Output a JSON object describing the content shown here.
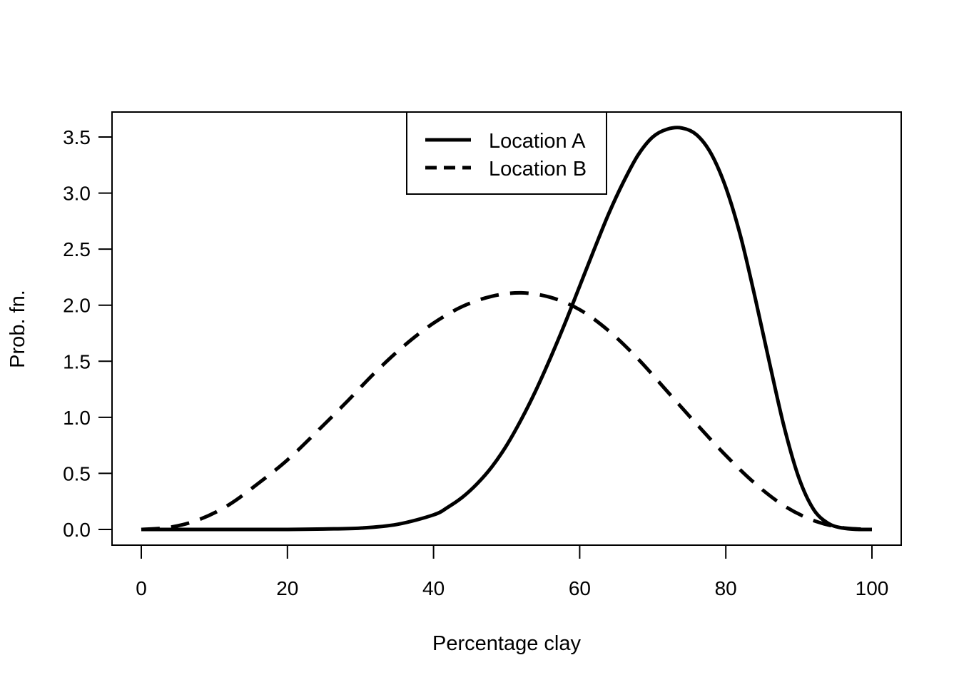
{
  "chart_data": {
    "type": "line",
    "title": "",
    "xlabel": "Percentage clay",
    "ylabel": "Prob. fn.",
    "xlim": [
      0,
      100
    ],
    "ylim": [
      0,
      3.5
    ],
    "xticks": [
      0,
      20,
      40,
      60,
      80,
      100
    ],
    "yticks": [
      0.0,
      0.5,
      1.0,
      1.5,
      2.0,
      2.5,
      3.0,
      3.5
    ],
    "xtick_labels": [
      "0",
      "20",
      "40",
      "60",
      "80",
      "100"
    ],
    "ytick_labels": [
      "0.0",
      "0.5",
      "1.0",
      "1.5",
      "2.0",
      "2.5",
      "3.0",
      "3.5"
    ],
    "grid": false,
    "legend_position": "top-center",
    "series": [
      {
        "name": "Location A",
        "line_style": "solid",
        "color": "#000000",
        "x": [
          0,
          5,
          10,
          15,
          20,
          25,
          30,
          35,
          40,
          42,
          44,
          46,
          48,
          50,
          52,
          54,
          56,
          58,
          60,
          62,
          64,
          66,
          68,
          70,
          72,
          74,
          76,
          78,
          80,
          82,
          84,
          86,
          88,
          90,
          92,
          94,
          96,
          98,
          100
        ],
        "y": [
          0,
          0,
          0,
          0,
          0,
          0.004,
          0.012,
          0.045,
          0.13,
          0.2,
          0.29,
          0.41,
          0.56,
          0.75,
          0.98,
          1.24,
          1.53,
          1.84,
          2.17,
          2.5,
          2.82,
          3.1,
          3.34,
          3.5,
          3.57,
          3.58,
          3.52,
          3.35,
          3.05,
          2.62,
          2.07,
          1.48,
          0.91,
          0.46,
          0.18,
          0.055,
          0.012,
          0.001,
          0
        ]
      },
      {
        "name": "Location B",
        "line_style": "dashed",
        "color": "#000000",
        "x": [
          0,
          4,
          8,
          12,
          16,
          20,
          24,
          28,
          32,
          36,
          40,
          44,
          48,
          52,
          56,
          60,
          64,
          68,
          72,
          76,
          80,
          84,
          88,
          92,
          96,
          100
        ],
        "y": [
          0,
          0.02,
          0.09,
          0.22,
          0.41,
          0.62,
          0.87,
          1.13,
          1.4,
          1.64,
          1.84,
          1.99,
          2.08,
          2.11,
          2.07,
          1.96,
          1.77,
          1.52,
          1.23,
          0.94,
          0.66,
          0.41,
          0.21,
          0.08,
          0.015,
          0
        ]
      }
    ]
  }
}
